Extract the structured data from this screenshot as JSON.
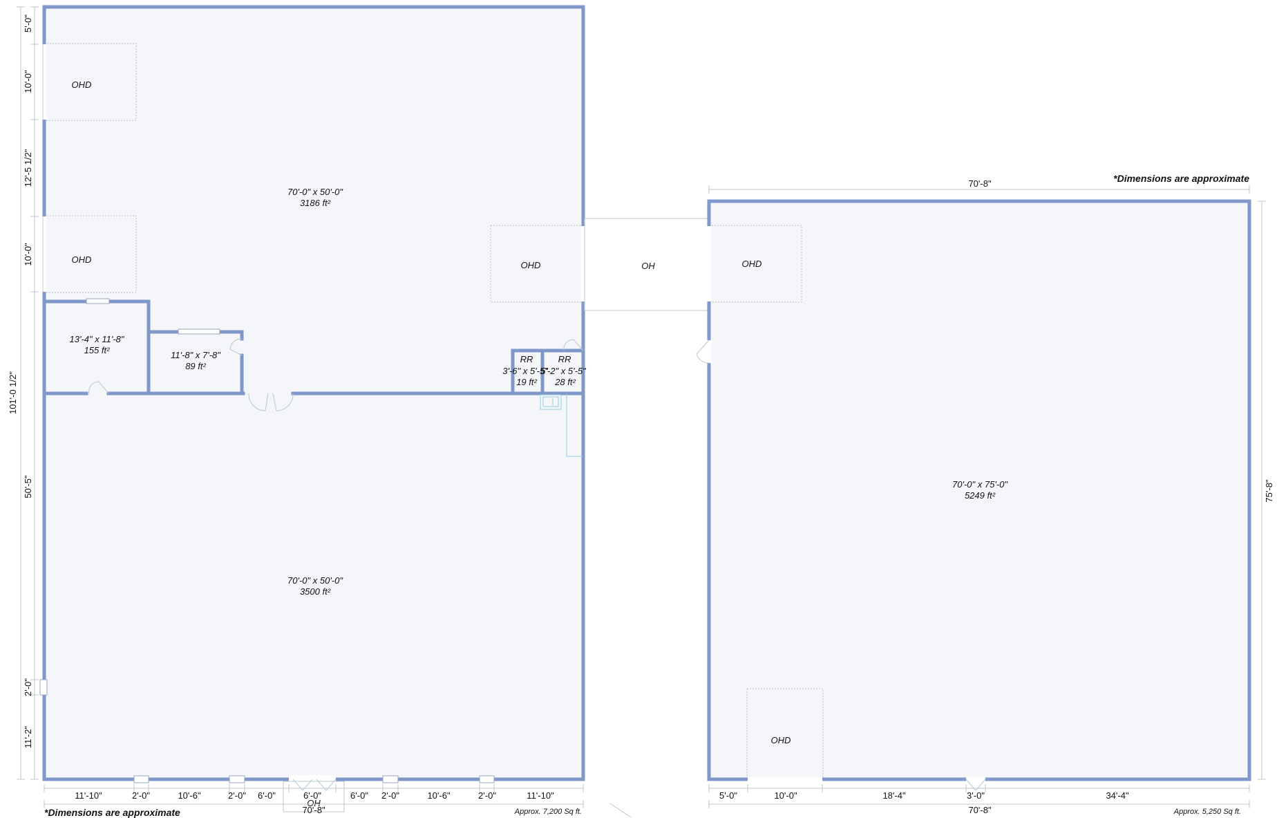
{
  "left_building": {
    "rooms": [
      {
        "dims": "70'-0\" x 50'-0\"",
        "area": "3186 ft²"
      },
      {
        "dims": "13'-4\" x 11'-8\"",
        "area": "155 ft²"
      },
      {
        "dims": "11'-8\" x 7'-8\"",
        "area": "89 ft²"
      },
      {
        "dims": "3'-6\" x 5'-5\"",
        "area": "19 ft²",
        "name": "RR"
      },
      {
        "dims": "5'-2\" x 5'-5\"",
        "area": "28 ft²",
        "name": "RR"
      },
      {
        "dims": "70'-0\" x 50'-0\"",
        "area": "3500 ft²"
      }
    ],
    "doors": {
      "ohd_1": "OHD",
      "ohd_2": "OHD",
      "ohd_3": "OHD",
      "oh_bottom": "OH"
    },
    "left_dims": [
      "5'-0\"",
      "10'-0\"",
      "12'-5 1/2\"",
      "10'-0\"",
      "50'-5\"",
      "2'-0\"",
      "11'-2\""
    ],
    "overall_height": "101'-0 1/2\"",
    "bottom_dims": [
      "11'-10\"",
      "2'-0\"",
      "10'-6\"",
      "2'-0\"",
      "6'-0\"",
      "6'-0\"",
      "6'-0\"",
      "2'-0\"",
      "10'-6\"",
      "2'-0\"",
      "11'-10\""
    ],
    "overall_width": "70'-8\"",
    "note": "*Dimensions are approximate",
    "approx_area": "Approx. 7,200 Sq ft."
  },
  "connector": {
    "label": "OH"
  },
  "right_building": {
    "room": {
      "dims": "70'-0\" x 75'-0\"",
      "area": "5249 ft²"
    },
    "doors": {
      "ohd_1": "OHD",
      "ohd_2": "OHD"
    },
    "top_width": "70'-8\"",
    "right_height": "75'-8\"",
    "bottom_dims": [
      "5'-0\"",
      "10'-0\"",
      "18'-4\"",
      "3'-0\"",
      "34'-4\""
    ],
    "overall_width": "70'-8\"",
    "note": "*Dimensions are approximate",
    "approx_area": "Approx. 5,250 Sq ft."
  },
  "colors": {
    "wall": "#7f98c9",
    "floor": "#f5f6fa",
    "dimension_line": "#bfc5cc"
  }
}
